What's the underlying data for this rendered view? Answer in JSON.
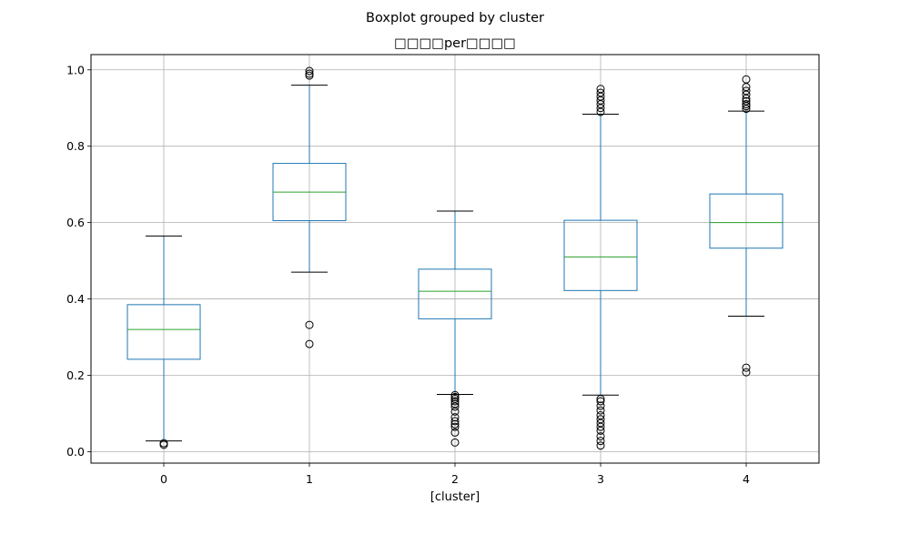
{
  "chart_data": {
    "type": "box",
    "suptitle": "Boxplot grouped by cluster",
    "title": "□□□□per□□□□",
    "xlabel": "[cluster]",
    "ylabel": "",
    "categories": [
      "0",
      "1",
      "2",
      "3",
      "4"
    ],
    "ylim": [
      -0.03,
      1.04
    ],
    "yticks": [
      0.0,
      0.2,
      0.4,
      0.6,
      0.8,
      1.0
    ],
    "ytick_labels": [
      "0.0",
      "0.2",
      "0.4",
      "0.6",
      "0.8",
      "1.0"
    ],
    "grid": true,
    "colors": {
      "box": "#1f77b4",
      "median": "#2ca02c",
      "cap": "#000000",
      "grid": "#b0b0b0"
    },
    "boxes": [
      {
        "category": "0",
        "whislo": 0.028,
        "q1": 0.242,
        "med": 0.32,
        "q3": 0.385,
        "whishi": 0.565,
        "fliers": [
          0.018,
          0.022
        ]
      },
      {
        "category": "1",
        "whislo": 0.47,
        "q1": 0.605,
        "med": 0.68,
        "q3": 0.755,
        "whishi": 0.96,
        "fliers": [
          0.282,
          0.332,
          0.985,
          0.99,
          0.997
        ]
      },
      {
        "category": "2",
        "whislo": 0.15,
        "q1": 0.348,
        "med": 0.42,
        "q3": 0.478,
        "whishi": 0.63,
        "fliers": [
          0.024,
          0.05,
          0.065,
          0.072,
          0.08,
          0.09,
          0.105,
          0.118,
          0.125,
          0.132,
          0.138,
          0.143,
          0.148
        ]
      },
      {
        "category": "3",
        "whislo": 0.148,
        "q1": 0.422,
        "med": 0.51,
        "q3": 0.606,
        "whishi": 0.884,
        "fliers": [
          0.016,
          0.028,
          0.04,
          0.055,
          0.065,
          0.075,
          0.085,
          0.095,
          0.108,
          0.12,
          0.132,
          0.138,
          0.89,
          0.9,
          0.91,
          0.92,
          0.93,
          0.94,
          0.95
        ]
      },
      {
        "category": "4",
        "whislo": 0.355,
        "q1": 0.533,
        "med": 0.6,
        "q3": 0.675,
        "whishi": 0.892,
        "fliers": [
          0.208,
          0.22,
          0.898,
          0.905,
          0.91,
          0.918,
          0.925,
          0.935,
          0.945,
          0.955,
          0.975
        ]
      }
    ]
  }
}
